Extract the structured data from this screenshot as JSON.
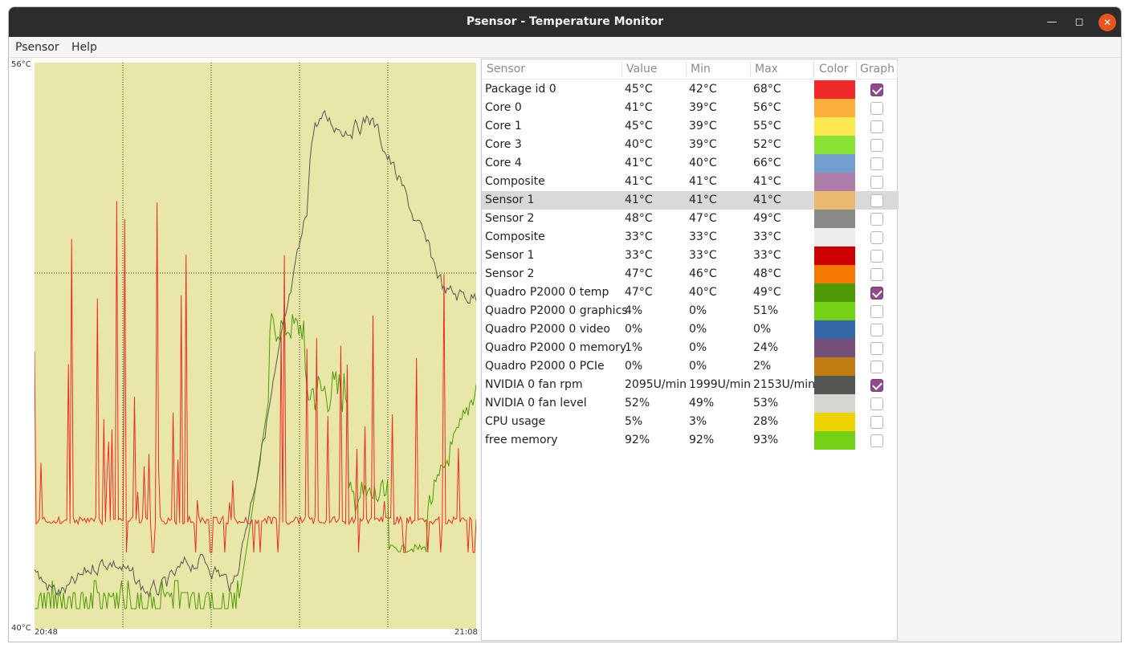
{
  "window": {
    "title": "Psensor - Temperature Monitor"
  },
  "menu": {
    "items": [
      "Psensor",
      "Help"
    ]
  },
  "graph": {
    "y_max_label": "56°C",
    "y_min_label": "40°C",
    "x_start_label": "20:48",
    "x_end_label": "21:08",
    "background": "#e8e7a8",
    "grid_color": "#2e2e2e"
  },
  "table": {
    "headers": [
      "Sensor",
      "Value",
      "Min",
      "Max",
      "Color",
      "Graph"
    ],
    "rows": [
      {
        "sensor": "Package id 0",
        "value": "45°C",
        "min": "42°C",
        "max": "68°C",
        "color": "#ef2929",
        "graph": true
      },
      {
        "sensor": "Core 0",
        "value": "41°C",
        "min": "39°C",
        "max": "56°C",
        "color": "#fcaf3e",
        "graph": false
      },
      {
        "sensor": "Core 1",
        "value": "45°C",
        "min": "39°C",
        "max": "55°C",
        "color": "#fce94f",
        "graph": false
      },
      {
        "sensor": "Core 3",
        "value": "40°C",
        "min": "39°C",
        "max": "52°C",
        "color": "#8ae234",
        "graph": false
      },
      {
        "sensor": "Core 4",
        "value": "41°C",
        "min": "40°C",
        "max": "66°C",
        "color": "#729fcf",
        "graph": false
      },
      {
        "sensor": "Composite",
        "value": "41°C",
        "min": "41°C",
        "max": "41°C",
        "color": "#ad7fa8",
        "graph": false
      },
      {
        "sensor": "Sensor 1",
        "value": "41°C",
        "min": "41°C",
        "max": "41°C",
        "color": "#e9b96e",
        "graph": false,
        "selected": true
      },
      {
        "sensor": "Sensor 2",
        "value": "48°C",
        "min": "47°C",
        "max": "49°C",
        "color": "#888a85",
        "graph": false
      },
      {
        "sensor": "Composite",
        "value": "33°C",
        "min": "33°C",
        "max": "33°C",
        "color": "#eeeeec",
        "graph": false
      },
      {
        "sensor": "Sensor 1",
        "value": "33°C",
        "min": "33°C",
        "max": "33°C",
        "color": "#cc0000",
        "graph": false
      },
      {
        "sensor": "Sensor 2",
        "value": "47°C",
        "min": "46°C",
        "max": "48°C",
        "color": "#f57900",
        "graph": false
      },
      {
        "sensor": "Quadro P2000 0 temp",
        "value": "47°C",
        "min": "40°C",
        "max": "49°C",
        "color": "#4e9a06",
        "graph": true
      },
      {
        "sensor": "Quadro P2000 0 graphics",
        "value": "4%",
        "min": "0%",
        "max": "51%",
        "color": "#73d216",
        "graph": false
      },
      {
        "sensor": "Quadro P2000 0 video",
        "value": "0%",
        "min": "0%",
        "max": "0%",
        "color": "#3465a4",
        "graph": false
      },
      {
        "sensor": "Quadro P2000 0 memory",
        "value": "1%",
        "min": "0%",
        "max": "24%",
        "color": "#75507b",
        "graph": false
      },
      {
        "sensor": "Quadro P2000 0 PCIe",
        "value": "0%",
        "min": "0%",
        "max": "2%",
        "color": "#c17d11",
        "graph": false
      },
      {
        "sensor": "NVIDIA 0 fan rpm",
        "value": "2095U/min",
        "min": "1999U/min",
        "max": "2153U/min",
        "color": "#555753",
        "graph": true
      },
      {
        "sensor": "NVIDIA 0 fan level",
        "value": "52%",
        "min": "49%",
        "max": "53%",
        "color": "#d3d7cf",
        "graph": false
      },
      {
        "sensor": "CPU usage",
        "value": "5%",
        "min": "3%",
        "max": "28%",
        "color": "#edd400",
        "graph": false
      },
      {
        "sensor": "free memory",
        "value": "92%",
        "min": "92%",
        "max": "93%",
        "color": "#73d216",
        "graph": false
      }
    ]
  }
}
